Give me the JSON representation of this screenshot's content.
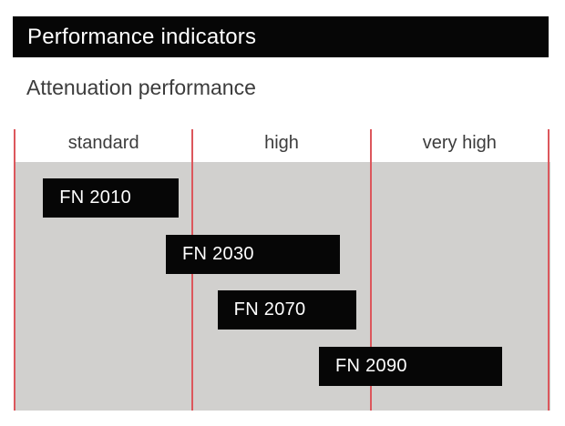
{
  "header": {
    "title": "Performance indicators"
  },
  "subtitle": "Attenuation performance",
  "colors": {
    "accent_red": "#dc575c",
    "plot_bg": "#d1d0ce",
    "bar_black": "#060606",
    "text_dark": "#3c3c3c"
  },
  "chart_data": {
    "type": "bar",
    "subtype": "horizontal-range-bands",
    "title": "Attenuation performance",
    "categories": [
      "standard",
      "high",
      "very high"
    ],
    "xlim": [
      0,
      3
    ],
    "band_boundaries": [
      0,
      1,
      2,
      3
    ],
    "grid": "vertical red separators at band boundaries",
    "legend": "none",
    "series": [
      {
        "name": "FN 2010",
        "span": [
          0.16,
          0.92
        ]
      },
      {
        "name": "FN 2030",
        "span": [
          0.85,
          1.83
        ]
      },
      {
        "name": "FN 2070",
        "span": [
          1.14,
          1.92
        ]
      },
      {
        "name": "FN 2090",
        "span": [
          1.71,
          2.74
        ]
      }
    ]
  }
}
